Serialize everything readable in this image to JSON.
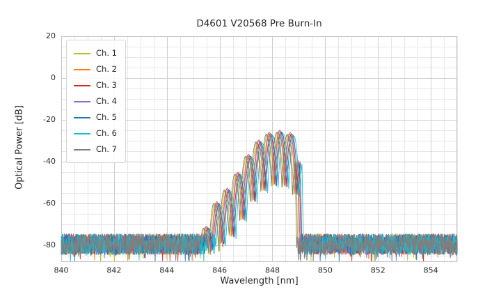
{
  "chart_data": {
    "type": "line",
    "title": "D4601 V20568 Pre Burn-In",
    "xlabel": "Wavelength [nm]",
    "ylabel": "Optical Power [dB]",
    "xlim": [
      840,
      855
    ],
    "ylim": [
      -88,
      20
    ],
    "xticks": [
      840,
      842,
      844,
      846,
      848,
      850,
      852,
      854
    ],
    "yticks": [
      20,
      0,
      -20,
      -40,
      -60,
      -80
    ],
    "x_minor_step": 0.5,
    "y_minor_step": 5,
    "grid": true,
    "legend_position": "upper-left",
    "noise_floor_db": -79.5,
    "noise_peak_to_peak_db": 10,
    "signal": {
      "band_nm": [
        845.3,
        849.1
      ],
      "peak_db": -25.5,
      "ripple_period_nm": 0.4,
      "ripple_phase_nm": 846.1,
      "ripple_depth_db": 26,
      "envelope_points": [
        [
          845.3,
          -78
        ],
        [
          845.9,
          -60
        ],
        [
          846.4,
          -52
        ],
        [
          846.9,
          -42
        ],
        [
          847.3,
          -33
        ],
        [
          847.7,
          -28
        ],
        [
          848.1,
          -25.5
        ],
        [
          848.5,
          -26
        ],
        [
          848.85,
          -27.5
        ],
        [
          849.0,
          -34
        ],
        [
          849.06,
          -80
        ]
      ]
    },
    "series": [
      {
        "name": "Ch. 1",
        "color": "#bcbd22",
        "offset_nm": -0.1,
        "seed": 11
      },
      {
        "name": "Ch. 2",
        "color": "#ff7f0e",
        "offset_nm": -0.05,
        "seed": 22
      },
      {
        "name": "Ch. 3",
        "color": "#d62728",
        "offset_nm": 0.02,
        "seed": 33
      },
      {
        "name": "Ch. 4",
        "color": "#9467bd",
        "offset_nm": -0.02,
        "seed": 44
      },
      {
        "name": "Ch. 5",
        "color": "#1f77b4",
        "offset_nm": 0.06,
        "seed": 55
      },
      {
        "name": "Ch. 6",
        "color": "#17becf",
        "offset_nm": 0.12,
        "seed": 66
      },
      {
        "name": "Ch. 7",
        "color": "#7f7f7f",
        "offset_nm": -0.14,
        "seed": 77
      }
    ]
  }
}
